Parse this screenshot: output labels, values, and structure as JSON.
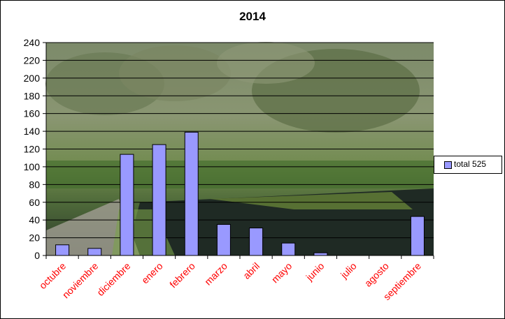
{
  "chart_data": {
    "type": "bar",
    "title": "2014",
    "categories": [
      "octubre",
      "noviembre",
      "diciembre",
      "enero",
      "febrero",
      "marzo",
      "abril",
      "mayo",
      "junio",
      "julio",
      "agosto",
      "septiembre"
    ],
    "series": [
      {
        "name": "total 525",
        "values": [
          12,
          8,
          114,
          125,
          139,
          35,
          31,
          14,
          3,
          0,
          0,
          44
        ]
      }
    ],
    "yticks": [
      "0",
      "20",
      "40",
      "60",
      "80",
      "100",
      "120",
      "140",
      "160",
      "180",
      "200",
      "220",
      "240"
    ],
    "ylim": [
      0,
      240
    ],
    "grid": true,
    "legend": "right",
    "colors": {
      "bar": "#9999ff",
      "tick_labels_x": "#ff0000",
      "gridline": "#000000"
    }
  }
}
